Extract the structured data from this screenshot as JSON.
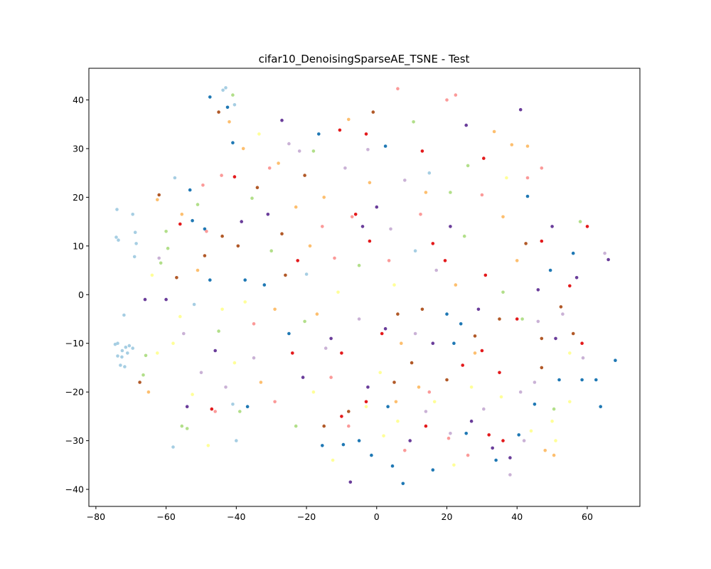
{
  "chart_data": {
    "type": "scatter",
    "title": "cifar10_DenoisingSparseAE_TSNE - Test",
    "xlabel": "",
    "ylabel": "",
    "xlim": [
      -82,
      75
    ],
    "ylim": [
      -43.5,
      46.5
    ],
    "xticks": [
      -80,
      -60,
      -40,
      -20,
      0,
      20,
      40,
      60
    ],
    "yticks": [
      -40,
      -30,
      -20,
      -10,
      0,
      10,
      20,
      30,
      40
    ],
    "xtick_labels": [
      "−80",
      "−60",
      "−40",
      "−20",
      "0",
      "20",
      "40",
      "60"
    ],
    "ytick_labels": [
      "−40",
      "−30",
      "−20",
      "−10",
      "0",
      "10",
      "20",
      "30",
      "40"
    ],
    "grid": false,
    "legend": "none",
    "colormap": "Paired",
    "palette": [
      "#a6cee3",
      "#1f78b4",
      "#b2df8a",
      "#33a02c",
      "#fb9a99",
      "#e31a1c",
      "#fdbf6f",
      "#ff7f00",
      "#cab2d6",
      "#6a3d9a",
      "#ffff99",
      "#b15928"
    ],
    "class_colors": [
      "#a6cee3",
      "#1f78b4",
      "#b2df8a",
      "#fb9a99",
      "#e31a1c",
      "#fdbf6f",
      "#cab2d6",
      "#6a3d9a",
      "#ffff99",
      "#b15928"
    ],
    "points": [
      [
        -74.5,
        -10.2,
        0
      ],
      [
        -73.8,
        -10.0,
        0
      ],
      [
        -72.5,
        -11.5,
        0
      ],
      [
        -71.5,
        -10.8,
        0
      ],
      [
        -70.5,
        -10.5,
        0
      ],
      [
        -69.5,
        -11.0,
        0
      ],
      [
        -73.0,
        -14.5,
        0
      ],
      [
        -71.8,
        -14.8,
        0
      ],
      [
        -72.6,
        -12.8,
        0
      ],
      [
        -73.8,
        -12.6,
        0
      ],
      [
        -71.0,
        -12.0,
        0
      ],
      [
        -74.2,
        11.8,
        0
      ],
      [
        -73.6,
        11.2,
        0
      ],
      [
        -74.0,
        17.5,
        0
      ],
      [
        -69.5,
        16.5,
        0
      ],
      [
        -68.8,
        12.8,
        0
      ],
      [
        -68.5,
        10.5,
        0
      ],
      [
        -69.0,
        7.8,
        0
      ],
      [
        -72.0,
        -4.2,
        0
      ],
      [
        -58.0,
        -31.3,
        0
      ],
      [
        -40.0,
        -30.0,
        0
      ],
      [
        -43.0,
        42.5,
        0
      ],
      [
        -43.8,
        42.0,
        0
      ],
      [
        -40.5,
        39.0,
        0
      ],
      [
        -41.0,
        -22.5,
        0
      ],
      [
        -53.2,
        21.5,
        1
      ],
      [
        -47.5,
        40.6,
        1
      ],
      [
        -42.5,
        38.5,
        1
      ],
      [
        -41.0,
        31.2,
        1
      ],
      [
        -49.0,
        13.5,
        1
      ],
      [
        -52.5,
        15.2,
        1
      ],
      [
        -37.5,
        3.0,
        1
      ],
      [
        -36.8,
        -23.0,
        1
      ],
      [
        -15.5,
        -31.0,
        1
      ],
      [
        -9.5,
        -30.8,
        1
      ],
      [
        -5.0,
        -30.0,
        1
      ],
      [
        -1.5,
        -33.0,
        1
      ],
      [
        4.5,
        -35.2,
        1
      ],
      [
        7.5,
        -38.8,
        1
      ],
      [
        3.2,
        -23.0,
        1
      ],
      [
        25.5,
        -28.5,
        1
      ],
      [
        34.0,
        -34.0,
        1
      ],
      [
        40.5,
        -28.8,
        1
      ],
      [
        45.0,
        -22.5,
        1
      ],
      [
        52.0,
        -17.5,
        1
      ],
      [
        58.5,
        -17.5,
        1
      ],
      [
        62.5,
        -17.5,
        1
      ],
      [
        63.8,
        -23.0,
        1
      ],
      [
        68.0,
        -13.5,
        1
      ],
      [
        56.0,
        8.5,
        1
      ],
      [
        49.5,
        5.0,
        1
      ],
      [
        43.0,
        20.2,
        1
      ],
      [
        24.0,
        -6.0,
        1
      ],
      [
        -16.5,
        33.0,
        1
      ],
      [
        2.5,
        30.5,
        1
      ],
      [
        22.0,
        -10.0,
        1
      ],
      [
        -59.5,
        9.5,
        2
      ],
      [
        -60.0,
        13.0,
        2
      ],
      [
        -61.5,
        6.5,
        2
      ],
      [
        -65.8,
        -12.5,
        2
      ],
      [
        -66.5,
        -16.5,
        2
      ],
      [
        -51.0,
        18.5,
        2
      ],
      [
        -45.0,
        -7.5,
        2
      ],
      [
        -35.5,
        19.8,
        2
      ],
      [
        -41.0,
        41.0,
        2
      ],
      [
        -20.5,
        -5.5,
        2
      ],
      [
        -5.0,
        6.0,
        2
      ],
      [
        10.5,
        35.5,
        2
      ],
      [
        26.0,
        26.5,
        2
      ],
      [
        36.0,
        0.5,
        2
      ],
      [
        41.5,
        -5.0,
        2
      ],
      [
        50.5,
        -23.5,
        2
      ],
      [
        58.0,
        15.0,
        2
      ],
      [
        -55.5,
        -27.0,
        2
      ],
      [
        -54.0,
        -27.5,
        2
      ],
      [
        -18.0,
        29.5,
        2
      ],
      [
        -49.5,
        22.5,
        3
      ],
      [
        -48.5,
        13.0,
        3
      ],
      [
        -44.2,
        24.5,
        3
      ],
      [
        -30.5,
        26.0,
        3
      ],
      [
        -15.5,
        14.0,
        3
      ],
      [
        -12.0,
        7.5,
        3
      ],
      [
        -7.0,
        16.0,
        3
      ],
      [
        3.5,
        7.0,
        3
      ],
      [
        12.5,
        16.5,
        3
      ],
      [
        20.0,
        40.0,
        3
      ],
      [
        22.5,
        41.0,
        3
      ],
      [
        6.0,
        42.3,
        3
      ],
      [
        43.0,
        24.0,
        3
      ],
      [
        47.0,
        26.0,
        3
      ],
      [
        15.0,
        -20.0,
        3
      ],
      [
        20.5,
        -29.5,
        3
      ],
      [
        8.0,
        -32.0,
        3
      ],
      [
        -8.0,
        -27.0,
        3
      ],
      [
        -46.0,
        -24.0,
        3
      ],
      [
        -56.0,
        14.5,
        4
      ],
      [
        -47.0,
        -23.5,
        4
      ],
      [
        -40.5,
        24.2,
        4
      ],
      [
        -22.5,
        7.0,
        4
      ],
      [
        -10.5,
        33.8,
        4
      ],
      [
        -6.0,
        16.5,
        4
      ],
      [
        -2.0,
        11.0,
        4
      ],
      [
        1.5,
        -8.0,
        4
      ],
      [
        13.0,
        29.5,
        4
      ],
      [
        16.0,
        10.5,
        4
      ],
      [
        19.5,
        7.0,
        4
      ],
      [
        30.5,
        28.0,
        4
      ],
      [
        32.0,
        -28.8,
        4
      ],
      [
        36.0,
        -30.0,
        4
      ],
      [
        40.0,
        -5.0,
        4
      ],
      [
        47.0,
        11.0,
        4
      ],
      [
        55.0,
        1.8,
        4
      ],
      [
        58.5,
        -10.0,
        4
      ],
      [
        60.0,
        14.0,
        4
      ],
      [
        24.5,
        -14.5,
        4
      ],
      [
        -10.0,
        -25.0,
        4
      ],
      [
        -3.0,
        -22.0,
        4
      ],
      [
        14.0,
        -27.0,
        4
      ],
      [
        30.0,
        -11.5,
        4
      ],
      [
        -65.0,
        -20.0,
        5
      ],
      [
        -62.5,
        19.5,
        5
      ],
      [
        -55.5,
        16.5,
        5
      ],
      [
        -51.0,
        5.0,
        5
      ],
      [
        -42.0,
        35.5,
        5
      ],
      [
        -38.0,
        30.0,
        5
      ],
      [
        -28.0,
        27.0,
        5
      ],
      [
        -29.0,
        -3.0,
        5
      ],
      [
        -33.0,
        -18.0,
        5
      ],
      [
        -23.0,
        18.0,
        5
      ],
      [
        -17.0,
        -4.0,
        5
      ],
      [
        -8.0,
        36.0,
        5
      ],
      [
        -2.0,
        23.0,
        5
      ],
      [
        5.5,
        -22.0,
        5
      ],
      [
        12.0,
        -19.0,
        5
      ],
      [
        22.5,
        2.0,
        5
      ],
      [
        28.0,
        -12.0,
        5
      ],
      [
        33.5,
        33.5,
        5
      ],
      [
        38.5,
        30.8,
        5
      ],
      [
        43.0,
        30.5,
        5
      ],
      [
        48.0,
        -32.0,
        5
      ],
      [
        50.5,
        -33.0,
        5
      ],
      [
        14.0,
        21.0,
        5
      ],
      [
        -62.0,
        7.5,
        6
      ],
      [
        -55.0,
        -8.0,
        6
      ],
      [
        -50.0,
        -16.0,
        6
      ],
      [
        -43.0,
        -19.0,
        6
      ],
      [
        -35.0,
        -13.0,
        6
      ],
      [
        -25.0,
        31.0,
        6
      ],
      [
        -22.0,
        29.5,
        6
      ],
      [
        -14.5,
        -11.0,
        6
      ],
      [
        -2.5,
        29.8,
        6
      ],
      [
        4.0,
        13.5,
        6
      ],
      [
        8.0,
        23.5,
        6
      ],
      [
        14.0,
        -24.0,
        6
      ],
      [
        21.0,
        -28.5,
        6
      ],
      [
        30.5,
        -23.5,
        6
      ],
      [
        38.0,
        -37.0,
        6
      ],
      [
        42.0,
        -30.0,
        6
      ],
      [
        46.0,
        -5.5,
        6
      ],
      [
        53.0,
        -4.0,
        6
      ],
      [
        58.8,
        -13.0,
        6
      ],
      [
        65.0,
        8.5,
        6
      ],
      [
        11.0,
        -8.0,
        6
      ],
      [
        -60.0,
        -1.0,
        7
      ],
      [
        -66.0,
        -1.0,
        7
      ],
      [
        -54.0,
        -23.0,
        7
      ],
      [
        -46.0,
        -11.5,
        7
      ],
      [
        -38.5,
        15.0,
        7
      ],
      [
        -31.0,
        16.5,
        7
      ],
      [
        -27.0,
        35.8,
        7
      ],
      [
        -21.0,
        -17.0,
        7
      ],
      [
        -13.0,
        -9.0,
        7
      ],
      [
        -7.5,
        -38.5,
        7
      ],
      [
        -2.5,
        -19.0,
        7
      ],
      [
        2.5,
        -7.0,
        7
      ],
      [
        9.5,
        -30.0,
        7
      ],
      [
        16.0,
        -10.0,
        7
      ],
      [
        21.0,
        14.0,
        7
      ],
      [
        25.5,
        34.8,
        7
      ],
      [
        29.0,
        -3.0,
        7
      ],
      [
        33.0,
        -31.5,
        7
      ],
      [
        38.0,
        -33.5,
        7
      ],
      [
        41.0,
        38.0,
        7
      ],
      [
        51.0,
        -9.0,
        7
      ],
      [
        57.0,
        3.5,
        7
      ],
      [
        66.0,
        7.2,
        7
      ],
      [
        -58.0,
        -10.0,
        8
      ],
      [
        -64.0,
        4.0,
        8
      ],
      [
        -52.5,
        -20.5,
        8
      ],
      [
        -44.0,
        -3.0,
        8
      ],
      [
        -37.5,
        -1.5,
        8
      ],
      [
        -33.5,
        33.0,
        8
      ],
      [
        -18.0,
        -20.0,
        8
      ],
      [
        -11.0,
        0.5,
        8
      ],
      [
        -3.0,
        -23.0,
        8
      ],
      [
        6.0,
        -26.0,
        8
      ],
      [
        16.5,
        -22.0,
        8
      ],
      [
        27.0,
        -19.0,
        8
      ],
      [
        35.5,
        -21.0,
        8
      ],
      [
        44.0,
        -28.0,
        8
      ],
      [
        50.0,
        -26.0,
        8
      ],
      [
        55.0,
        -22.0,
        8
      ],
      [
        -40.5,
        -14.0,
        8
      ],
      [
        -56.0,
        -4.5,
        8
      ],
      [
        -62.5,
        -12.0,
        8
      ],
      [
        -48.0,
        -31.0,
        8
      ],
      [
        -12.5,
        -34.0,
        8
      ],
      [
        2.0,
        -29.0,
        8
      ],
      [
        22.0,
        -35.0,
        8
      ],
      [
        -67.5,
        -18.0,
        9
      ],
      [
        -62.0,
        20.5,
        9
      ],
      [
        -57.0,
        3.5,
        9
      ],
      [
        -49.0,
        8.0,
        9
      ],
      [
        -45.0,
        37.5,
        9
      ],
      [
        -39.5,
        10.0,
        9
      ],
      [
        -34.0,
        22.0,
        9
      ],
      [
        -26.0,
        4.0,
        9
      ],
      [
        -20.5,
        24.5,
        9
      ],
      [
        -15.0,
        -27.0,
        9
      ],
      [
        -8.0,
        -24.0,
        9
      ],
      [
        -1.0,
        37.5,
        9
      ],
      [
        5.0,
        -18.0,
        9
      ],
      [
        13.0,
        -3.0,
        9
      ],
      [
        20.0,
        -17.5,
        9
      ],
      [
        28.0,
        -8.5,
        9
      ],
      [
        35.0,
        -5.0,
        9
      ],
      [
        42.5,
        10.5,
        9
      ],
      [
        47.0,
        -15.0,
        9
      ],
      [
        52.5,
        -2.5,
        9
      ],
      [
        -27.0,
        12.5,
        9
      ],
      [
        -20.0,
        4.2,
        0
      ],
      [
        -25.0,
        -8.0,
        1
      ],
      [
        -30.0,
        9.0,
        2
      ],
      [
        -35.0,
        -6.0,
        3
      ],
      [
        -10.0,
        -12.0,
        4
      ],
      [
        -15.0,
        20.0,
        5
      ],
      [
        -5.0,
        -5.0,
        6
      ],
      [
        0.0,
        18.0,
        7
      ],
      [
        5.0,
        2.0,
        8
      ],
      [
        10.0,
        -14.0,
        9
      ],
      [
        15.0,
        25.0,
        0
      ],
      [
        20.0,
        -4.0,
        1
      ],
      [
        25.0,
        12.0,
        2
      ],
      [
        30.0,
        20.5,
        3
      ],
      [
        35.0,
        -16.0,
        4
      ],
      [
        40.0,
        7.0,
        5
      ],
      [
        45.0,
        -18.0,
        6
      ],
      [
        50.0,
        14.0,
        7
      ],
      [
        55.0,
        -12.0,
        8
      ],
      [
        -44.0,
        12.0,
        9
      ],
      [
        -52.0,
        -2.0,
        0
      ],
      [
        -47.5,
        3.0,
        1
      ],
      [
        -39.0,
        -24.0,
        2
      ],
      [
        -29.0,
        -22.0,
        3
      ],
      [
        -24.0,
        -12.0,
        4
      ],
      [
        -19.0,
        10.0,
        5
      ],
      [
        -9.0,
        26.0,
        6
      ],
      [
        -4.0,
        14.0,
        7
      ],
      [
        1.0,
        -16.0,
        8
      ],
      [
        6.0,
        -4.0,
        9
      ],
      [
        11.0,
        9.0,
        0
      ],
      [
        16.0,
        -36.0,
        1
      ],
      [
        21.0,
        21.0,
        2
      ],
      [
        26.0,
        -33.0,
        3
      ],
      [
        31.0,
        4.0,
        4
      ],
      [
        36.0,
        16.0,
        5
      ],
      [
        41.0,
        -20.0,
        6
      ],
      [
        46.0,
        1.0,
        7
      ],
      [
        51.0,
        -30.0,
        8
      ],
      [
        56.0,
        -8.0,
        9
      ],
      [
        -57.5,
        24.0,
        0
      ],
      [
        -32.0,
        2.0,
        1
      ],
      [
        -23.0,
        -27.0,
        2
      ],
      [
        -13.0,
        -17.0,
        3
      ],
      [
        -3.0,
        33.0,
        4
      ],
      [
        7.0,
        -10.0,
        5
      ],
      [
        17.0,
        5.0,
        6
      ],
      [
        27.0,
        -26.0,
        7
      ],
      [
        37.0,
        24.0,
        8
      ],
      [
        47.0,
        -9.0,
        9
      ]
    ]
  }
}
